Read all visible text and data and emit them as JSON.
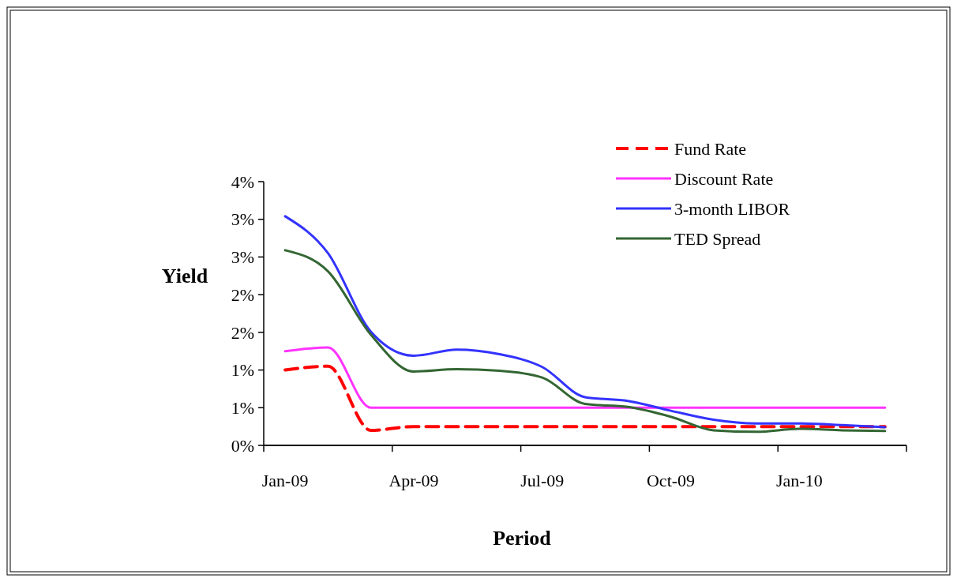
{
  "chart_data": {
    "type": "line",
    "xlabel": "Period",
    "ylabel": "Yield",
    "categories": [
      "Jan-09",
      null,
      null,
      "Apr-09",
      null,
      null,
      "Jul-09",
      null,
      null,
      "Oct-09",
      null,
      null,
      "Jan-10",
      null,
      null
    ],
    "ylim": [
      0,
      3.5
    ],
    "yticks": [
      {
        "value": 0,
        "label": "0%"
      },
      {
        "value": 0.5,
        "label": "1%"
      },
      {
        "value": 1,
        "label": "1%"
      },
      {
        "value": 1.5,
        "label": "2%"
      },
      {
        "value": 2,
        "label": "2%"
      },
      {
        "value": 2.5,
        "label": "3%"
      },
      {
        "value": 3,
        "label": "3%"
      },
      {
        "value": 3.5,
        "label": "4%"
      }
    ],
    "grid": false,
    "legend": "top right",
    "series": [
      {
        "name": "Fund Rate",
        "color": "#ff0000",
        "line_style": "dashed",
        "values": [
          1.0,
          1.05,
          0.2,
          0.25,
          0.25,
          0.25,
          0.25,
          0.25,
          0.25,
          0.25,
          0.25,
          0.25,
          0.25,
          0.25,
          0.25
        ]
      },
      {
        "name": "Discount Rate",
        "color": "#ff33ff",
        "values": [
          1.25,
          1.3,
          0.5,
          0.5,
          0.5,
          0.5,
          0.5,
          0.5,
          0.5,
          0.5,
          0.5,
          0.5,
          0.5,
          0.5,
          0.5
        ]
      },
      {
        "name": "3-month LIBOR",
        "color": "#3333ff",
        "values": [
          3.04,
          2.55,
          1.51,
          1.19,
          1.27,
          1.21,
          1.04,
          0.64,
          0.59,
          0.46,
          0.34,
          0.29,
          0.29,
          0.27,
          0.24
        ]
      },
      {
        "name": "TED Spread",
        "color": "#336633",
        "values": [
          2.59,
          2.31,
          1.47,
          0.98,
          1.01,
          0.99,
          0.9,
          0.55,
          0.51,
          0.38,
          0.2,
          0.18,
          0.22,
          0.2,
          0.19
        ]
      }
    ]
  }
}
